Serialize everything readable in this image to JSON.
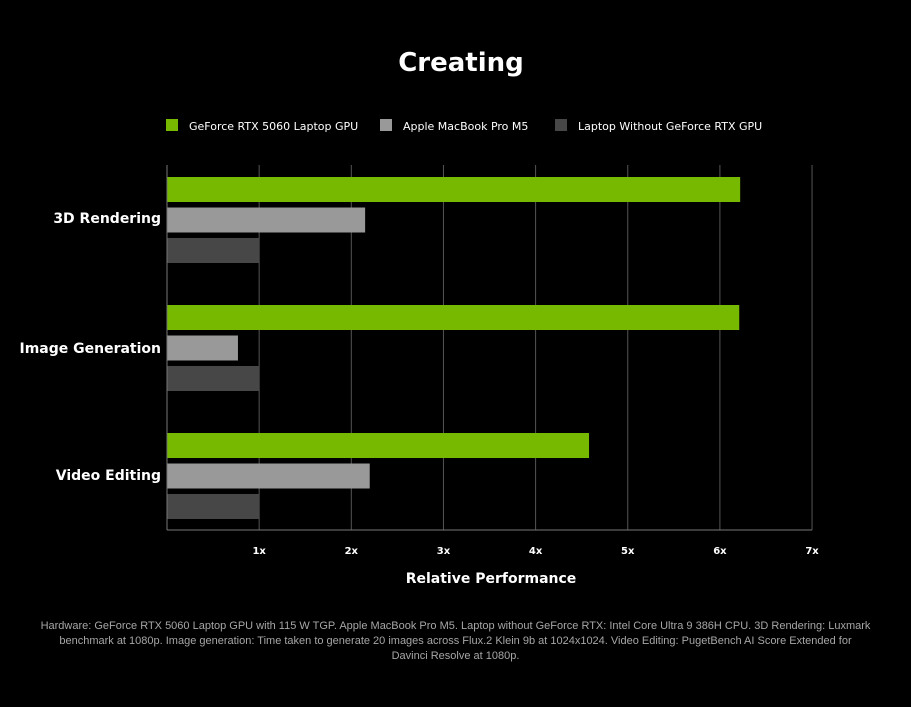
{
  "chart_data": {
    "type": "bar",
    "orientation": "horizontal",
    "title": "Creating",
    "categories": [
      "3D Rendering",
      "Image Generation",
      "Video Editing"
    ],
    "series": [
      {
        "name": "GeForce RTX 5060 Laptop GPU",
        "values": [
          6.22,
          6.21,
          4.58
        ],
        "color": "#76b900"
      },
      {
        "name": "Apple MacBook Pro M5",
        "values": [
          2.15,
          0.77,
          2.2
        ],
        "color": "#999999"
      },
      {
        "name": "Laptop Without GeForce RTX GPU",
        "values": [
          1.0,
          1.0,
          1.0
        ],
        "color": "#474747"
      }
    ],
    "xlabel": "Relative Performance",
    "ylabel": "",
    "xlim": [
      0,
      7
    ],
    "xticks": [
      1,
      2,
      3,
      4,
      5,
      6,
      7
    ],
    "xtick_labels": [
      "1x",
      "2x",
      "3x",
      "4x",
      "5x",
      "6x",
      "7x"
    ],
    "grid": true,
    "legend_position": "top"
  },
  "footnote": "Hardware: GeForce RTX 5060 Laptop GPU with 115 W TGP. Apple MacBook Pro M5. Laptop without GeForce RTX: Intel Core Ultra 9 386H CPU. 3D Rendering: Luxmark benchmark at 1080p. Image generation: Time taken to generate 20 images across Flux.2 Klein 9b at 1024x1024. Video Editing: PugetBench AI Score Extended for Davinci Resolve at 1080p."
}
